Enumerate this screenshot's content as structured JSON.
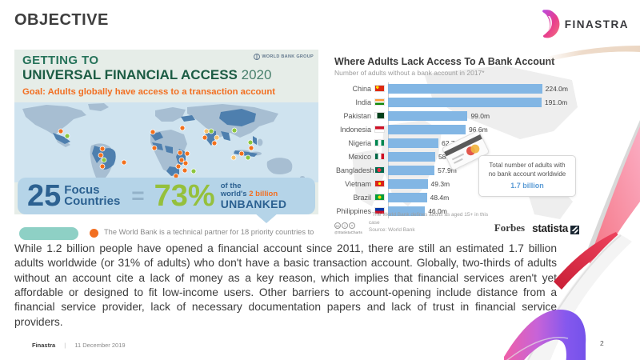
{
  "title": "OBJECTIVE",
  "logo": {
    "brand": "FINASTRA"
  },
  "infographic": {
    "org_logo": "WORLD BANK GROUP",
    "heading_line1": "GETTING TO",
    "heading_line2": "UNIVERSAL FINANCIAL ACCESS",
    "heading_year": "2020",
    "goal": "Goal: Adults globally have access to a transaction account",
    "stat_count": "25",
    "stat_count_label1": "Focus",
    "stat_count_label2": "Countries",
    "equals": "=",
    "stat_percent": "73%",
    "percent_caption_line1": "of the",
    "percent_caption_line2_prefix": "world's",
    "percent_caption_highlight": "2 billion",
    "percent_caption_line3": "UNBANKED",
    "footnote": "The World Bank is a technical partner for 18 priority countries to"
  },
  "chart_data": {
    "type": "bar",
    "orientation": "horizontal",
    "title": "Where Adults Lack Access To A Bank Account",
    "subtitle": "Number of adults without a bank account in 2017*",
    "categories": [
      "China",
      "India",
      "Pakistan",
      "Indonesia",
      "Nigeria",
      "Mexico",
      "Bangladesh",
      "Vietnam",
      "Brazil",
      "Philippines"
    ],
    "values": [
      224.0,
      191.0,
      99.0,
      96.6,
      62.7,
      58.7,
      57.9,
      49.3,
      48.4,
      46.0
    ],
    "value_labels": [
      "224.0m",
      "191.0m",
      "99.0m",
      "96.6m",
      "62.7m",
      "58.7m",
      "57.9m",
      "49.3m",
      "48.4m",
      "46.0m"
    ],
    "unit": "million adults",
    "xlim": [
      0,
      224
    ],
    "bar_color": "#82b6e4",
    "callout_line1": "Total number of adults with",
    "callout_line2": "no bank account worldwide",
    "callout_value": "1.7 billion",
    "footnote": "* The World Bank defines adults as aged 15+ in this case",
    "source": "Source: World Bank",
    "credit_handle": "@StatistaCharts",
    "license_icons": [
      "cc",
      "i",
      "="
    ],
    "brand_forbes": "Forbes",
    "brand_statista": "statista"
  },
  "body_text": "While 1.2 billion people have opened a financial account since 2011, there are still an estimated 1.7 billion adults worldwide (or 31% of adults) who don't have a basic transaction account. Globally, two-thirds of adults without an account cite a lack of money as a key reason, which implies that financial services aren't yet affordable or designed to fit low-income users. Other barriers to account-opening include distance from a financial service provider, lack of necessary documentation papers and lack of trust in financial service providers.",
  "footer": {
    "brand": "Finastra",
    "separator": "|",
    "date": "11 December 2019",
    "page": "2"
  },
  "colors": {
    "accent_orange": "#f26f21",
    "accent_green": "#95c03c",
    "stat_blue": "#2c6191",
    "bar_blue": "#82b6e4",
    "callout_blue": "#5b9bd5",
    "heading_green": "#1c5c44"
  }
}
